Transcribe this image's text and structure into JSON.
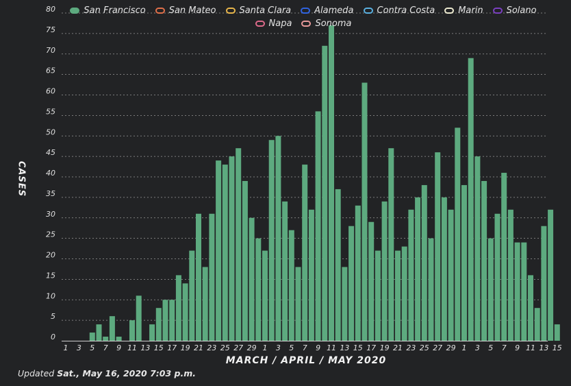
{
  "chart_data": {
    "type": "bar",
    "xlabel": "MARCH / APRIL / MAY 2020",
    "ylabel": "CASES",
    "ylim": [
      0,
      80
    ],
    "y_ticks": [
      0,
      5,
      10,
      15,
      20,
      25,
      30,
      35,
      40,
      45,
      50,
      55,
      60,
      65,
      70,
      75,
      80
    ],
    "x_tick_labels": [
      "1",
      "3",
      "5",
      "7",
      "9",
      "11",
      "13",
      "15",
      "17",
      "19",
      "21",
      "23",
      "25",
      "27",
      "29",
      "1",
      "3",
      "5",
      "7",
      "9",
      "11",
      "13",
      "15",
      "17",
      "19",
      "21",
      "23",
      "25",
      "27",
      "29",
      "1",
      "3",
      "5",
      "7",
      "9",
      "11",
      "13",
      "15"
    ],
    "grid": true,
    "legend_position": "top",
    "series": [
      {
        "name": "San Francisco",
        "color": "#5daa7f",
        "values": [
          0,
          0,
          0,
          0,
          2,
          4,
          1,
          6,
          1,
          0,
          5,
          11,
          0,
          4,
          8,
          10,
          10,
          16,
          14,
          22,
          31,
          18,
          31,
          44,
          43,
          45,
          47,
          39,
          30,
          25,
          22,
          49,
          50,
          34,
          27,
          18,
          43,
          32,
          56,
          72,
          77,
          37,
          18,
          28,
          33,
          63,
          29,
          22,
          34,
          47,
          22,
          23,
          32,
          35,
          38,
          25,
          46,
          35,
          32,
          52,
          38,
          69,
          45,
          39,
          25,
          31,
          41,
          32,
          24,
          24,
          16,
          8,
          28,
          32,
          4
        ]
      }
    ],
    "legend": [
      {
        "name": "San Francisco",
        "color": "#5daa7f"
      },
      {
        "name": "San Mateo",
        "color": "#e0704a"
      },
      {
        "name": "Santa Clara",
        "color": "#e8b64a"
      },
      {
        "name": "Alameda",
        "color": "#2f63e0"
      },
      {
        "name": "Contra Costa",
        "color": "#5ab0e0"
      },
      {
        "name": "Marin",
        "color": "#ece9cf"
      },
      {
        "name": "Solano",
        "color": "#7a3fc0"
      },
      {
        "name": "Napa",
        "color": "#dd6a8a"
      },
      {
        "name": "Sonoma",
        "color": "#e89a9a"
      }
    ]
  },
  "footer": {
    "prefix": "Updated",
    "timestamp": "Sat., May 16, 2020 7:03 p.m."
  }
}
